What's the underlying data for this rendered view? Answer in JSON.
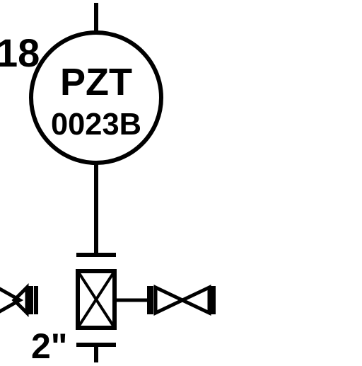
{
  "diagram": {
    "type": "P&ID instrument loop fragment",
    "instrument": {
      "function": "PZT",
      "tag_number": "0023B",
      "bubble_shape": "circle"
    },
    "line_number_fragment": "18",
    "size_label": "2\"",
    "valve_manifold": {
      "center_symbol": "block-valve-box-with-x",
      "right_valve": "gate-valve",
      "left_valve": "gate-valve-partial"
    },
    "colors": {
      "line": "#000000",
      "background": "#ffffff"
    }
  }
}
